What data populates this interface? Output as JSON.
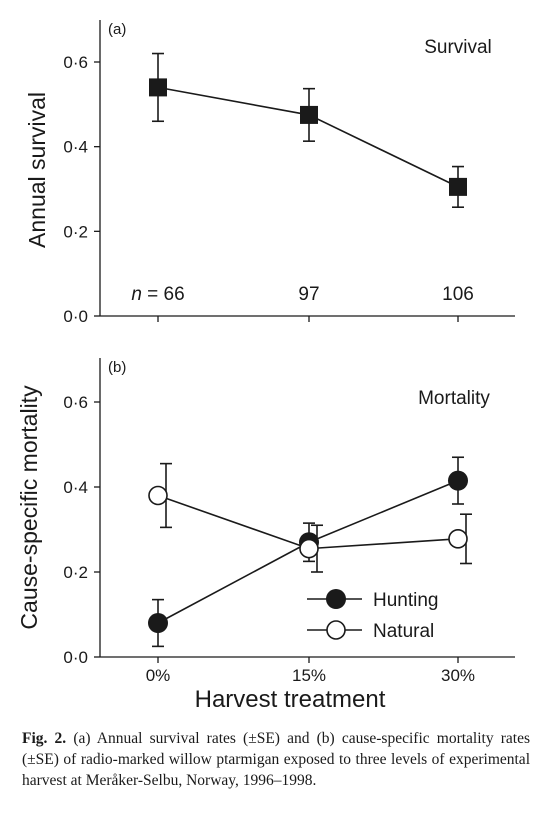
{
  "chart_data": [
    {
      "type": "line",
      "panel_label": "(a)",
      "title": "Survival",
      "ylabel": "Annual survival",
      "xlabel": "",
      "ylim": [
        0,
        0.7
      ],
      "yticks": [
        "0·0",
        "0·2",
        "0·4",
        "0·6"
      ],
      "ytick_values": [
        0,
        0.2,
        0.4,
        0.6
      ],
      "categories": [
        "0%",
        "15%",
        "30%"
      ],
      "series": [
        {
          "values": [
            0.54,
            0.475,
            0.305
          ],
          "errors": [
            0.08,
            0.062,
            0.048
          ],
          "marker": "square-filled"
        }
      ],
      "sample_sizes": {
        "prefix": "n",
        "first": "= 66",
        "values": [
          "97",
          "106"
        ]
      },
      "grid": false
    },
    {
      "type": "line",
      "panel_label": "(b)",
      "title": "Mortality",
      "ylabel": "Cause-specific mortality",
      "xlabel": "Harvest treatment",
      "ylim": [
        0,
        0.7
      ],
      "yticks": [
        "0·0",
        "0·2",
        "0·4",
        "0·6"
      ],
      "ytick_values": [
        0,
        0.2,
        0.4,
        0.6
      ],
      "categories": [
        "0%",
        "15%",
        "30%"
      ],
      "series": [
        {
          "name": "Hunting",
          "values": [
            0.08,
            0.27,
            0.415
          ],
          "errors": [
            0.055,
            0.045,
            0.055
          ],
          "marker": "circle-filled"
        },
        {
          "name": "Natural",
          "values": [
            0.38,
            0.255,
            0.278
          ],
          "errors": [
            0.075,
            0.055,
            0.058
          ],
          "marker": "circle-open"
        }
      ],
      "legend": "bottom-right",
      "grid": false
    }
  ],
  "caption": {
    "label": "Fig. 2.",
    "text": " (a) Annual survival rates (±SE) and (b) cause-specific mortality rates (±SE) of radio-marked willow ptarmigan exposed to three levels of experimental harvest at Meråker-Selbu, Norway, 1996–1998."
  }
}
